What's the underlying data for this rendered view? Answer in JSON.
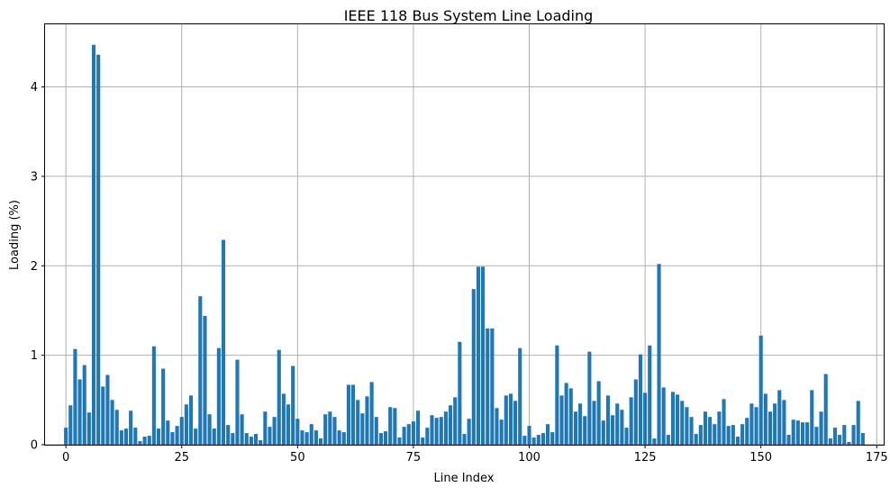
{
  "chart_data": {
    "type": "bar",
    "title": "IEEE 118 Bus System Line Loading",
    "xlabel": "Line Index",
    "ylabel": "Loading (%)",
    "xlim": [
      -4.5,
      176.5
    ],
    "ylim": [
      0,
      4.7
    ],
    "x_ticks": [
      0,
      25,
      50,
      75,
      100,
      125,
      150,
      175
    ],
    "y_ticks": [
      0,
      1,
      2,
      3,
      4
    ],
    "grid": true,
    "bar_color": "#1f77b4",
    "x": [
      0,
      1,
      2,
      3,
      4,
      5,
      6,
      7,
      8,
      9,
      10,
      11,
      12,
      13,
      14,
      15,
      16,
      17,
      18,
      19,
      20,
      21,
      22,
      23,
      24,
      25,
      26,
      27,
      28,
      29,
      30,
      31,
      32,
      33,
      34,
      35,
      36,
      37,
      38,
      39,
      40,
      41,
      42,
      43,
      44,
      45,
      46,
      47,
      48,
      49,
      50,
      51,
      52,
      53,
      54,
      55,
      56,
      57,
      58,
      59,
      60,
      61,
      62,
      63,
      64,
      65,
      66,
      67,
      68,
      69,
      70,
      71,
      72,
      73,
      74,
      75,
      76,
      77,
      78,
      79,
      80,
      81,
      82,
      83,
      84,
      85,
      86,
      87,
      88,
      89,
      90,
      91,
      92,
      93,
      94,
      95,
      96,
      97,
      98,
      99,
      100,
      101,
      102,
      103,
      104,
      105,
      106,
      107,
      108,
      109,
      110,
      111,
      112,
      113,
      114,
      115,
      116,
      117,
      118,
      119,
      120,
      121,
      122,
      123,
      124,
      125,
      126,
      127,
      128,
      129,
      130,
      131,
      132,
      133,
      134,
      135,
      136,
      137,
      138,
      139,
      140,
      141,
      142,
      143,
      144,
      145,
      146,
      147,
      148,
      149,
      150,
      151,
      152,
      153,
      154,
      155,
      156,
      157,
      158,
      159,
      160,
      161,
      162,
      163,
      164,
      165,
      166,
      167,
      168,
      169,
      170,
      171,
      172
    ],
    "values": [
      0.19,
      0.44,
      1.07,
      0.73,
      0.89,
      0.36,
      4.47,
      4.36,
      0.65,
      0.78,
      0.5,
      0.39,
      0.16,
      0.18,
      0.38,
      0.19,
      0.04,
      0.09,
      0.1,
      1.1,
      0.18,
      0.85,
      0.27,
      0.14,
      0.21,
      0.31,
      0.45,
      0.55,
      0.18,
      1.66,
      1.44,
      0.34,
      0.18,
      1.08,
      2.29,
      0.22,
      0.13,
      0.95,
      0.34,
      0.13,
      0.09,
      0.12,
      0.05,
      0.37,
      0.2,
      0.31,
      1.06,
      0.57,
      0.45,
      0.88,
      0.29,
      0.16,
      0.14,
      0.23,
      0.16,
      0.07,
      0.34,
      0.37,
      0.31,
      0.16,
      0.14,
      0.67,
      0.67,
      0.5,
      0.35,
      0.54,
      0.7,
      0.31,
      0.13,
      0.15,
      0.42,
      0.41,
      0.08,
      0.2,
      0.23,
      0.26,
      0.38,
      0.08,
      0.19,
      0.33,
      0.3,
      0.31,
      0.37,
      0.44,
      0.53,
      1.15,
      0.12,
      0.29,
      1.74,
      1.99,
      1.99,
      1.3,
      1.3,
      0.41,
      0.28,
      0.55,
      0.57,
      0.49,
      1.08,
      0.1,
      0.21,
      0.08,
      0.11,
      0.13,
      0.23,
      0.14,
      1.11,
      0.55,
      0.69,
      0.63,
      0.37,
      0.46,
      0.32,
      1.04,
      0.49,
      0.71,
      0.27,
      0.55,
      0.33,
      0.46,
      0.39,
      0.19,
      0.53,
      0.73,
      1.01,
      0.58,
      1.11,
      0.07,
      2.02,
      0.64,
      0.11,
      0.59,
      0.56,
      0.49,
      0.42,
      0.31,
      0.12,
      0.22,
      0.37,
      0.31,
      0.23,
      0.37,
      0.51,
      0.21,
      0.22,
      0.09,
      0.23,
      0.3,
      0.46,
      0.42,
      1.22,
      0.57,
      0.37,
      0.46,
      0.61,
      0.5,
      0.11,
      0.28,
      0.27,
      0.25,
      0.25,
      0.61,
      0.2,
      0.37,
      0.79,
      0.07,
      0.19,
      0.11,
      0.22,
      0.03,
      0.22,
      0.49,
      0.13
    ]
  }
}
